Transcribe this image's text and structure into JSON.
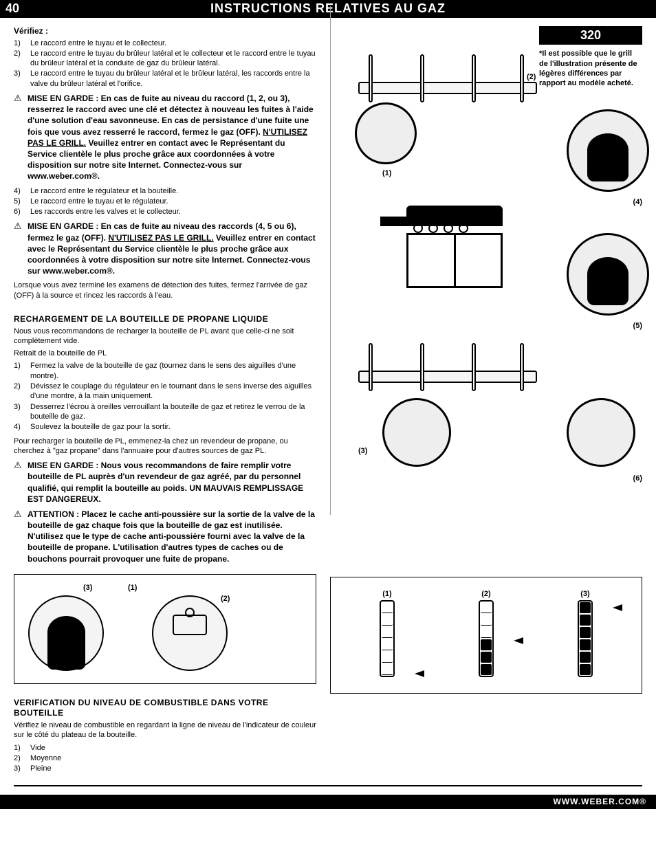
{
  "header": {
    "page_number": "40",
    "title": "INSTRUCTIONS RELATIVES AU GAZ"
  },
  "footer": {
    "url": "WWW.WEBER.COM®"
  },
  "verify": {
    "heading": "Vérifiez :",
    "items": [
      "Le raccord entre le tuyau et le collecteur.",
      "Le raccord entre le tuyau du brûleur latéral et le collecteur et le raccord entre le tuyau du brûleur latéral et la conduite de gaz du brûleur latéral.",
      "Le raccord entre le tuyau du brûleur latéral et le brûleur latéral, les raccords entre la valve du brûleur latéral et l'orifice."
    ]
  },
  "warning1": {
    "text_before": "MISE EN GARDE : En cas de fuite au niveau du raccord (1, 2, ou 3), resserrez le raccord avec une clé et détectez à nouveau les fuites à l'aide d'une solution d'eau savonneuse. En cas de persistance d'une fuite une fois que vous avez resserré le raccord, fermez le gaz (OFF). ",
    "text_underline": "N'UTILISEZ PAS LE GRILL.",
    "text_after": " Veuillez entrer en contact avec le Représentant du Service clientèle le plus proche grâce aux coordonnées à votre disposition sur notre site Internet. Connectez-vous sur www.weber.com®."
  },
  "verify2": {
    "items": [
      {
        "n": "4)",
        "t": "Le raccord entre le régulateur et la bouteille."
      },
      {
        "n": "5)",
        "t": "Le raccord entre le tuyau et le régulateur."
      },
      {
        "n": "6)",
        "t": "Les raccords entre les valves et le collecteur."
      }
    ]
  },
  "warning2": {
    "text_before": "MISE EN GARDE : En cas de fuite au niveau des raccords (4, 5 ou 6), fermez le gaz (OFF). ",
    "text_underline": "N'UTILISEZ PAS LE GRILL.",
    "text_after": " Veuillez entrer en contact avec le Représentant du Service clientèle le plus proche grâce aux coordonnées à votre disposition sur notre site Internet. Connectez-vous sur www.weber.com®."
  },
  "after_warnings": "Lorsque vous avez terminé les examens de détection des fuites, fermez l'arrivée de gaz (OFF) à la source et rincez les raccords à l'eau.",
  "recharge": {
    "heading": "RECHARGEMENT DE LA BOUTEILLE DE PROPANE LIQUIDE",
    "intro": "Nous vous recommandons de recharger la bouteille de PL avant que celle-ci ne soit complètement vide.",
    "sub": "Retrait de la bouteille de PL",
    "steps": [
      "Fermez la valve de la bouteille de gaz (tournez dans le sens des aiguilles d'une montre).",
      "Dévissez le couplage du régulateur en le tournant dans le sens inverse des aiguilles d'une montre, à la main uniquement.",
      "Desserrez l'écrou à oreilles verrouillant la bouteille de gaz et retirez le verrou de la bouteille de gaz.",
      "Soulevez la bouteille de gaz pour la sortir."
    ],
    "outro": "Pour recharger la bouteille de PL, emmenez-la chez un revendeur de propane, ou cherchez à \"gaz propane\" dans l'annuaire pour d'autres sources de gaz PL."
  },
  "warning3": {
    "text": "MISE EN GARDE : Nous vous recommandons de faire remplir votre bouteille de PL auprès d'un revendeur de gaz agréé, par du personnel qualifié, qui remplit la bouteille au poids. UN MAUVAIS REMPLISSAGE EST DANGEREUX."
  },
  "warning4": {
    "text": "ATTENTION : Placez le cache anti-poussière sur la sortie de la valve de la bouteille de gaz chaque fois que la bouteille de gaz est inutilisée. N'utilisez que le type de cache anti-poussière fourni avec la valve de la bouteille de propane. L'utilisation d'autres types de caches ou de bouchons pourrait provoquer une fuite de propane."
  },
  "bottle_figure": {
    "labels": [
      "(3)",
      "(1)",
      "(2)"
    ]
  },
  "fuel_check": {
    "heading": "VERIFICATION DU NIVEAU DE COMBUSTIBLE DANS VOTRE BOUTEILLE",
    "body": "Vérifiez le niveau de combustible en regardant la ligne de niveau de l'indicateur de couleur sur le côté du plateau de la bouteille.",
    "levels": [
      {
        "n": "1)",
        "t": "Vide"
      },
      {
        "n": "2)",
        "t": "Moyenne"
      },
      {
        "n": "3)",
        "t": "Pleine"
      }
    ]
  },
  "right": {
    "model": "320",
    "disclaimer": "*Il est possible que le grill de l'illustration présente de légères différences par rapport au modèle acheté.",
    "callouts": [
      "(1)",
      "(2)",
      "(3)",
      "(4)",
      "(5)",
      "(6)"
    ]
  },
  "gauges": {
    "labels": [
      "(1)",
      "(2)",
      "(3)"
    ],
    "segments": 6,
    "fill_levels": [
      0,
      3,
      6
    ]
  },
  "colors": {
    "black": "#000000",
    "white": "#ffffff",
    "illus_bg": "#eeeeee"
  }
}
